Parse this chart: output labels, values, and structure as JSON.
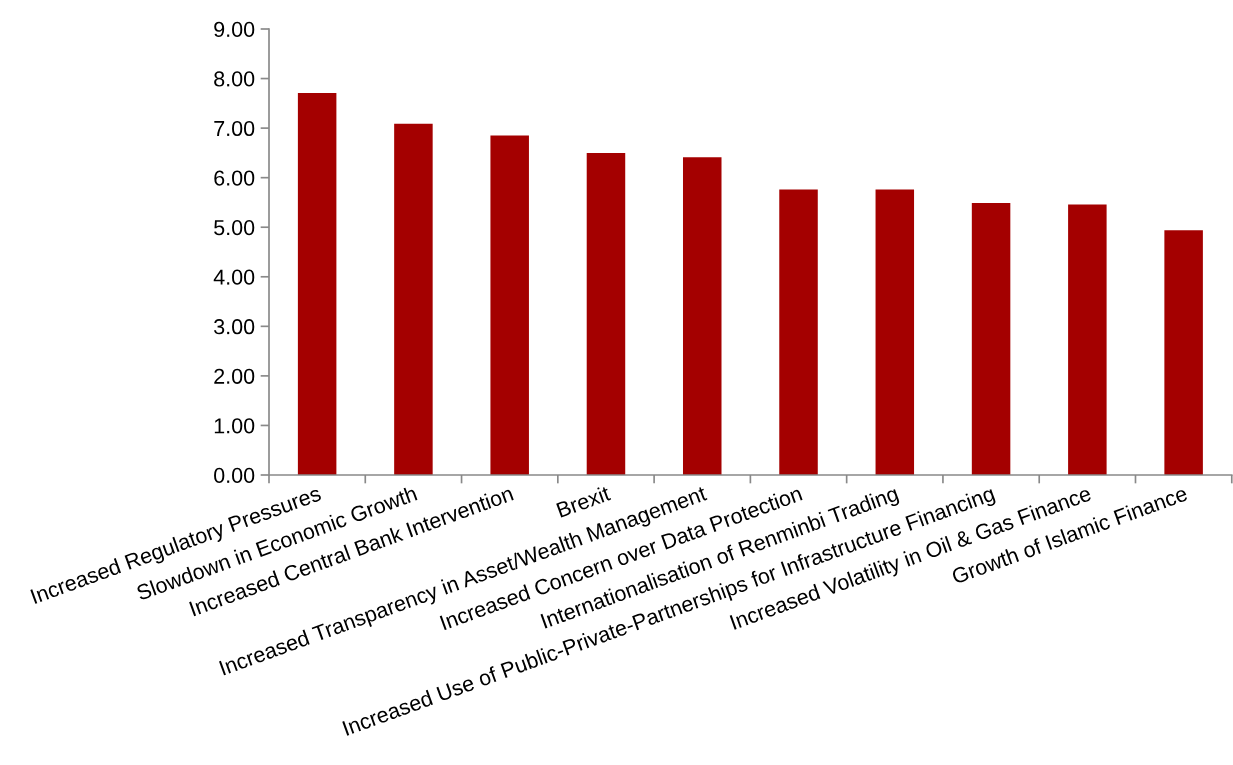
{
  "chart_data": {
    "type": "bar",
    "categories": [
      "Increased Regulatory Pressures",
      "Slowdown in Economic Growth",
      "Increased Central Bank Intervention",
      "Brexit",
      "Increased Transparency in Asset/Wealth Management",
      "Increased Concern over Data Protection",
      "Internationalisation of Renminbi Trading",
      "Increased Use of Public-Private-Partnerships for Infrastructure Financing",
      "Increased Volatility in Oil & Gas Finance",
      "Growth of Islamic Finance"
    ],
    "values": [
      7.71,
      7.09,
      6.85,
      6.5,
      6.41,
      5.76,
      5.76,
      5.49,
      5.46,
      4.94
    ],
    "color": "#a40000",
    "ylim": [
      0,
      9
    ],
    "yticks": [
      {
        "value": 0,
        "label": "0.00"
      },
      {
        "value": 1,
        "label": "1.00"
      },
      {
        "value": 2,
        "label": "2.00"
      },
      {
        "value": 3,
        "label": "3.00"
      },
      {
        "value": 4,
        "label": "4.00"
      },
      {
        "value": 5,
        "label": "5.00"
      },
      {
        "value": 6,
        "label": "6.00"
      },
      {
        "value": 7,
        "label": "7.00"
      },
      {
        "value": 8,
        "label": "8.00"
      },
      {
        "value": 9,
        "label": "9.00"
      }
    ]
  }
}
